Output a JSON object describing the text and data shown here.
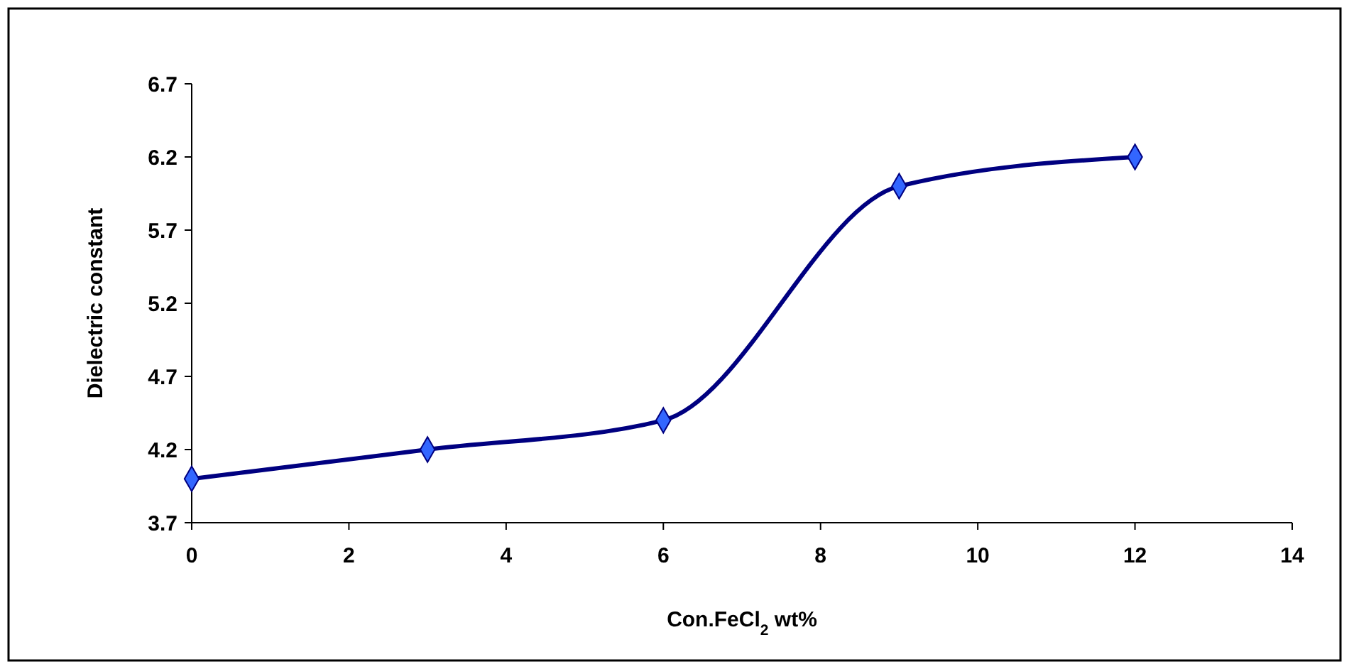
{
  "chart_data": {
    "type": "line",
    "xlabel": "Con.FeCl$_{2}$ wt%",
    "ylabel": "Dielectric constant",
    "x": [
      0,
      3,
      6,
      9,
      12
    ],
    "series": [
      {
        "color": "#000080",
        "values": [
          4.0,
          4.2,
          4.4,
          6.0,
          6.2
        ]
      }
    ],
    "xlim": [
      0,
      14
    ],
    "xticks": [
      0,
      2,
      4,
      6,
      8,
      10,
      12,
      14
    ],
    "ylim": [
      3.7,
      6.7
    ],
    "yticks": [
      3.7,
      4.2,
      4.7,
      5.2,
      5.7,
      6.2,
      6.7
    ],
    "grid": false,
    "marker": "diamond",
    "line_style": "solid"
  }
}
